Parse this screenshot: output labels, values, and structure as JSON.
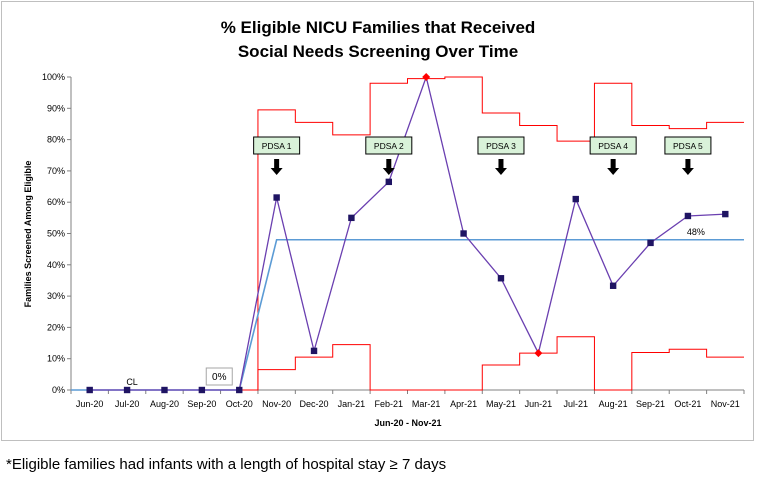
{
  "chart_data": {
    "type": "line",
    "title_lines": [
      "% Eligible NICU Families that Received",
      "Social Needs Screening Over Time"
    ],
    "ylabel": "Families Screened Among Eligible",
    "xlabel": "Jun-20 - Nov-21",
    "ylim": [
      0,
      100
    ],
    "y_ticks": [
      0,
      10,
      20,
      30,
      40,
      50,
      60,
      70,
      80,
      90,
      100
    ],
    "y_tick_labels": [
      "0%",
      "10%",
      "20%",
      "30%",
      "40%",
      "50%",
      "60%",
      "70%",
      "80%",
      "90%",
      "100%"
    ],
    "categories": [
      "Jun-20",
      "Jul-20",
      "Aug-20",
      "Sep-20",
      "Oct-20",
      "Nov-20",
      "Dec-20",
      "Jan-21",
      "Feb-21",
      "Mar-21",
      "Apr-21",
      "May-21",
      "Jun-21",
      "Jul-21",
      "Aug-21",
      "Sep-21",
      "Oct-21",
      "Nov-21"
    ],
    "values": [
      0,
      0,
      0,
      0,
      0,
      61.5,
      12.5,
      55,
      66.5,
      100,
      50,
      35.7,
      11.8,
      61,
      33.3,
      47,
      55.6,
      56.2
    ],
    "highlight_points": [
      9,
      12
    ],
    "center_line": {
      "segments": [
        {
          "from_index": 0,
          "to_index": 4,
          "value": 0,
          "label": "0%"
        },
        {
          "from_index": 5,
          "to_index": 17,
          "value": 48,
          "label": "48%"
        }
      ],
      "ramp": {
        "from_index": 4,
        "to_index": 5
      }
    },
    "cl_label": "CL",
    "upper_control_limits": [
      0,
      0,
      0,
      0,
      0,
      89.5,
      85.5,
      81.5,
      98,
      99.5,
      100,
      88.5,
      84.5,
      79.5,
      98,
      84.5,
      83.5,
      85.5
    ],
    "lower_control_limits": [
      0,
      0,
      0,
      0,
      0,
      6.5,
      10.5,
      14.5,
      0,
      0,
      0,
      8,
      11.8,
      17,
      0,
      12,
      13,
      10.5
    ],
    "annotations": [
      {
        "text": "PDSA 1",
        "index": 5
      },
      {
        "text": "PDSA 2",
        "index": 8
      },
      {
        "text": "PDSA 3",
        "index": 11
      },
      {
        "text": "PDSA 4",
        "index": 14
      },
      {
        "text": "PDSA 5",
        "index": 16
      }
    ],
    "colors": {
      "series": "#6a3fb0",
      "marker": "#1f1463",
      "highlight_marker": "#ff0000",
      "center_line": "#5b9bd5",
      "control_limits": "#ff0000",
      "annotation_fill": "#d9f2d9"
    },
    "grid": false
  },
  "footnote": "*Eligible families had infants with a length of hospital stay ≥ 7 days"
}
